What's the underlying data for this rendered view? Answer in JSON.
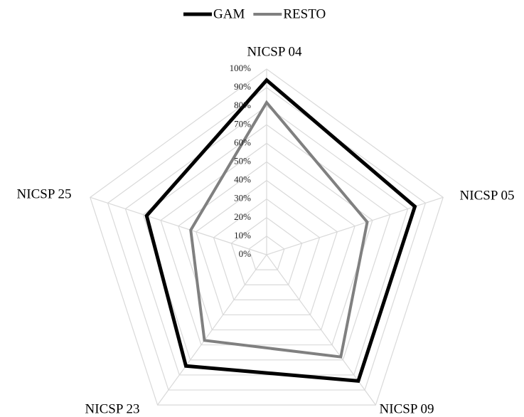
{
  "chart_data": {
    "type": "radar",
    "categories": [
      "NICSP 04",
      "NICSP 05",
      "NICSP 09",
      "NICSP 23",
      "NICSP 25"
    ],
    "series": [
      {
        "name": "GAM",
        "color": "#000000",
        "values": [
          94,
          84,
          84,
          74,
          68
        ]
      },
      {
        "name": "RESTO",
        "color": "#808080",
        "values": [
          82,
          57,
          68,
          57,
          43
        ]
      }
    ],
    "ylim": [
      0,
      100
    ],
    "yticks": [
      {
        "value": 0,
        "label": "0%"
      },
      {
        "value": 10,
        "label": "10%"
      },
      {
        "value": 20,
        "label": "20%"
      },
      {
        "value": 30,
        "label": "30%"
      },
      {
        "value": 40,
        "label": "40%"
      },
      {
        "value": 50,
        "label": "50%"
      },
      {
        "value": 60,
        "label": "60%"
      },
      {
        "value": 70,
        "label": "70%"
      },
      {
        "value": 80,
        "label": "80%"
      },
      {
        "value": 90,
        "label": "90%"
      },
      {
        "value": 100,
        "label": "100%"
      }
    ],
    "grid": true,
    "legend": "top"
  }
}
